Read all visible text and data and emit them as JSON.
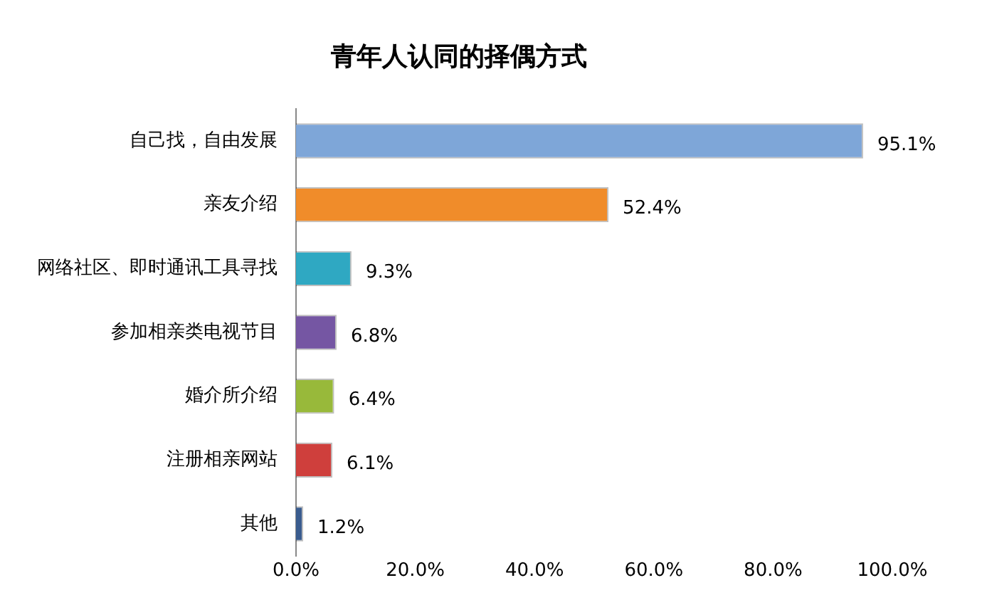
{
  "chart_data": {
    "type": "bar",
    "orientation": "horizontal",
    "title": "青年人认同的择偶方式",
    "categories": [
      "自己找，自由发展",
      "亲友介绍",
      "网络社区、即时通讯工具寻找",
      "参加相亲类电视节目",
      "婚介所介绍",
      "注册相亲网站",
      "其他"
    ],
    "values": [
      95.1,
      52.4,
      9.3,
      6.8,
      6.4,
      6.1,
      1.2
    ],
    "colors": [
      "#7ea6d8",
      "#f08c2a",
      "#2fa8c2",
      "#7556a3",
      "#98b93a",
      "#cf3f3c",
      "#3a5c8f"
    ],
    "value_labels": [
      "95.1%",
      "52.4%",
      "9.3%",
      "6.8%",
      "6.4%",
      "6.1%",
      "1.2%"
    ],
    "xlim": [
      0,
      100
    ],
    "xticks": [
      {
        "value": 0,
        "label": "0.0%"
      },
      {
        "value": 20,
        "label": "20.0%"
      },
      {
        "value": 40,
        "label": "40.0%"
      },
      {
        "value": 60,
        "label": "60.0%"
      },
      {
        "value": 80,
        "label": "80.0%"
      },
      {
        "value": 100,
        "label": "100.0%"
      }
    ],
    "grid": false,
    "legend": false
  }
}
